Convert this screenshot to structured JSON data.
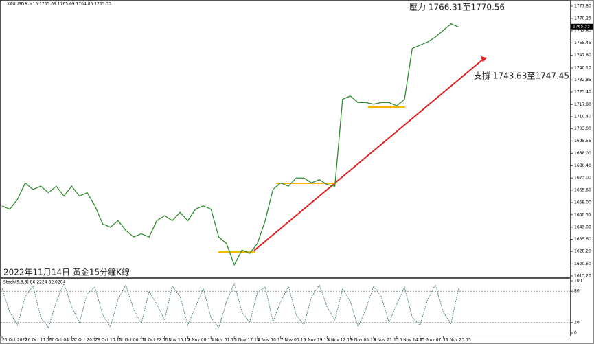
{
  "chart_data": [
    {
      "type": "line",
      "title": "XAUUSD#,M15  1765.69 1765.69 1764.85 1765.33",
      "annotations": [
        "壓力 1766.31至1770.56",
        "支撐 1743.63至1747.45",
        "2022年11月14日 黃金15分鐘K線"
      ],
      "last_price": 1765.33,
      "categories": [
        "25 Oct 2022",
        null,
        null,
        "26 Oct 11:15",
        null,
        null,
        "27 Oct 04:15",
        null,
        null,
        "27 Oct 20:15",
        null,
        null,
        "28 Oct 13:15",
        null,
        null,
        "31 Oct 06:15",
        null,
        null,
        "31 Oct 22:15",
        null,
        null,
        "1 Nov 15:15",
        null,
        null,
        "2 Nov 08:15",
        null,
        null,
        "3 Nov 01:15",
        null,
        null,
        "3 Nov 17:15",
        null,
        null,
        "4 Nov 10:15",
        null,
        null,
        "7 Nov 03:15",
        null,
        null,
        "7 Nov 19:15",
        null,
        null,
        "8 Nov 12:15",
        null,
        null,
        "9 Nov 05:15",
        null,
        null,
        "9 Nov 21:15",
        null,
        null,
        "10 Nov 14:15",
        null,
        null,
        "11 Nov 07:15",
        null,
        null,
        "11 Nov 23:15",
        null,
        null
      ],
      "series": [
        {
          "color": "#2e8b2e",
          "values": [
            1656,
            1654,
            1660,
            1670,
            1666,
            1668,
            1664,
            1668,
            1662,
            1668,
            1662,
            1664,
            1656,
            1645,
            1643,
            1647,
            1641,
            1637,
            1639,
            1637,
            1647,
            1650,
            1647,
            1652,
            1647,
            1654,
            1656,
            1654,
            1637,
            1633,
            1620,
            1629,
            1627,
            1633,
            1647,
            1666,
            1670,
            1668,
            1673,
            1673,
            1670,
            1672,
            1669,
            1668,
            1721,
            1723,
            1719,
            1719,
            1718,
            1719,
            1719,
            1717,
            1721,
            1752,
            1754,
            1756,
            1759,
            1763,
            1767,
            1765
          ]
        }
      ],
      "ylim": [
        1613.2,
        1777.8
      ],
      "yticks": [
        {
          "value": 1777.8,
          "label": "1777.80"
        },
        {
          "value": 1770.25,
          "label": "1770.25"
        },
        {
          "value": 1762.8,
          "label": "1762.80"
        },
        {
          "value": 1755.45,
          "label": "1755.45"
        },
        {
          "value": 1747.8,
          "label": "1747.80"
        },
        {
          "value": 1740.1,
          "label": "1740.10"
        },
        {
          "value": 1732.85,
          "label": "1732.85"
        },
        {
          "value": 1725.4,
          "label": "1725.40"
        },
        {
          "value": 1717.8,
          "label": "1717.80"
        },
        {
          "value": 1710.4,
          "label": "1710.40"
        },
        {
          "value": 1703,
          "label": "1703.00"
        },
        {
          "value": 1695.55,
          "label": "1695.55"
        },
        {
          "value": 1688,
          "label": "1688.00"
        },
        {
          "value": 1680.4,
          "label": "1680.40"
        },
        {
          "value": 1673,
          "label": "1673.00"
        },
        {
          "value": 1665.6,
          "label": "1665.60"
        },
        {
          "value": 1658,
          "label": "1658.00"
        },
        {
          "value": 1650.55,
          "label": "1650.55"
        },
        {
          "value": 1643,
          "label": "1643.00"
        },
        {
          "value": 1635.6,
          "label": "1635.60"
        },
        {
          "value": 1628.2,
          "label": "1628.20"
        },
        {
          "value": 1620.6,
          "label": "1620.60"
        },
        {
          "value": 1613.2,
          "label": "1613.20"
        }
      ]
    },
    {
      "type": "line",
      "title": "Stoch(5,3,3) 86.2224 82.0204",
      "series": [
        {
          "color": "#3a6f6f",
          "values": [
            85,
            40,
            15,
            70,
            90,
            30,
            10,
            60,
            95,
            50,
            20,
            75,
            88,
            35,
            12,
            65,
            92,
            45,
            18,
            80,
            55,
            25,
            90,
            70,
            15,
            50,
            85,
            30,
            10,
            60,
            95,
            40,
            20,
            78,
            88,
            22,
            60,
            90,
            35,
            15,
            70,
            92,
            50,
            25,
            85,
            60,
            12,
            45,
            90,
            70,
            20,
            55,
            88,
            30,
            15,
            65,
            92,
            40,
            18,
            86
          ]
        }
      ],
      "ylim": [
        0,
        100
      ],
      "yticks": [
        0,
        20,
        80,
        100
      ]
    }
  ]
}
